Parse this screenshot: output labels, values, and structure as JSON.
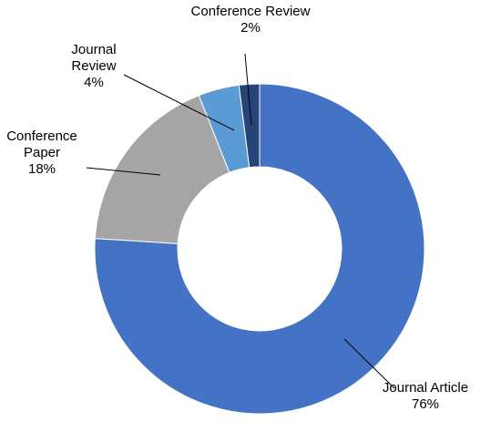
{
  "chart_data": {
    "type": "pie",
    "subtype": "donut",
    "title": "",
    "legend": "none",
    "slices": [
      {
        "category": "Journal Article",
        "value": 76,
        "label_lines": [
          "Journal Article",
          "76%"
        ],
        "color": "#4472C4"
      },
      {
        "category": "Conference Paper",
        "value": 18,
        "label_lines": [
          "Conference",
          "Paper",
          "18%"
        ],
        "color": "#A5A5A5"
      },
      {
        "category": "Journal Review",
        "value": 4,
        "label_lines": [
          "Journal",
          "Review",
          "4%"
        ],
        "color": "#5B9BD5"
      },
      {
        "category": "Conference Review",
        "value": 2,
        "label_lines": [
          "Conference Review",
          "2%"
        ],
        "color": "#264478"
      }
    ]
  }
}
